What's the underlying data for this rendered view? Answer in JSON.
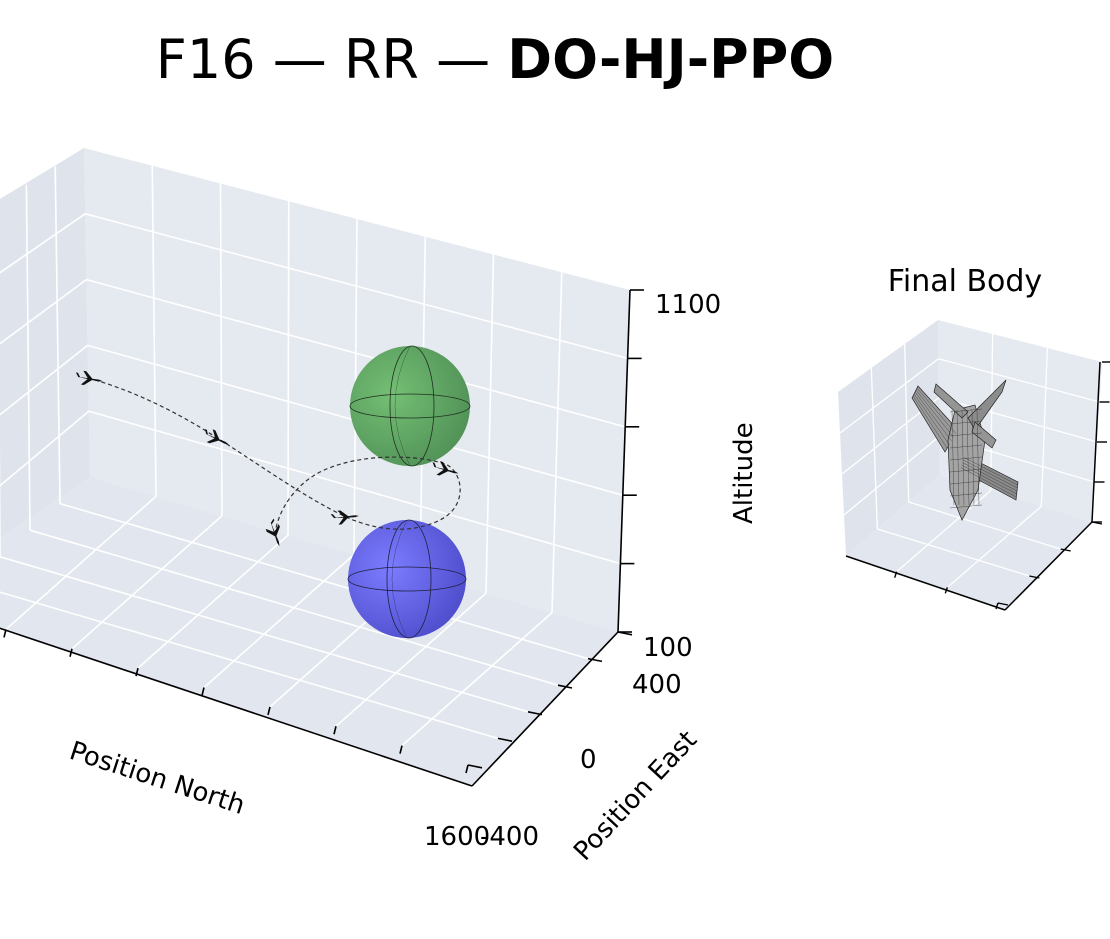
{
  "title": {
    "prefix": "F16 — RR — ",
    "emphasis": "DO-HJ-PPO"
  },
  "chart_data": [
    {
      "type": "scatter",
      "projection": "3d",
      "grid": true,
      "xlabel": "Position North",
      "ylabel": "Position East",
      "zlabel": "Altitude",
      "x_ticks": [
        "1600"
      ],
      "y_ticks": [
        "-400",
        "0",
        "400"
      ],
      "z_ticks": [
        "100",
        "1100"
      ],
      "trajectory_style": "dashed",
      "aircraft_markers": 6,
      "spheres": [
        {
          "name": "",
          "color": "#66aa66"
        },
        {
          "name": "",
          "color": "#6666ee"
        }
      ]
    },
    {
      "type": "scatter",
      "projection": "3d",
      "title": "Final Body",
      "grid": true,
      "model": "f16-wireframe"
    }
  ]
}
